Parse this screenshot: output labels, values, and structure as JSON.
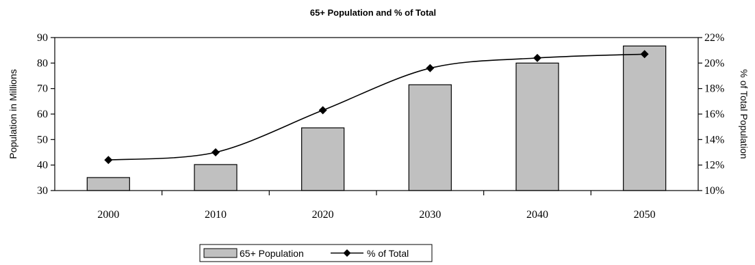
{
  "chart_data": {
    "type": "bar",
    "title": "65+ Population and % of Total",
    "categories": [
      "2000",
      "2010",
      "2020",
      "2030",
      "2040",
      "2050"
    ],
    "series": [
      {
        "name": "65+ Population",
        "type": "bar",
        "axis": "left",
        "values": [
          35.1,
          40.2,
          54.6,
          71.5,
          80.0,
          86.7
        ],
        "color": "#c0c0c0"
      },
      {
        "name": "% of Total",
        "type": "line",
        "axis": "right",
        "values": [
          12.4,
          13.0,
          16.3,
          19.6,
          20.4,
          20.7
        ],
        "color": "#000000",
        "marker": "diamond"
      }
    ],
    "ylabel": "Population in Millions",
    "ylim": [
      30,
      90
    ],
    "yticks": [
      "30",
      "40",
      "50",
      "60",
      "70",
      "80",
      "90"
    ],
    "y2label": "% of Total Population",
    "y2lim": [
      10,
      22
    ],
    "y2ticks": [
      "10%",
      "12%",
      "14%",
      "16%",
      "18%",
      "20%",
      "22%"
    ],
    "grid": false,
    "legend_position": "bottom-center"
  }
}
